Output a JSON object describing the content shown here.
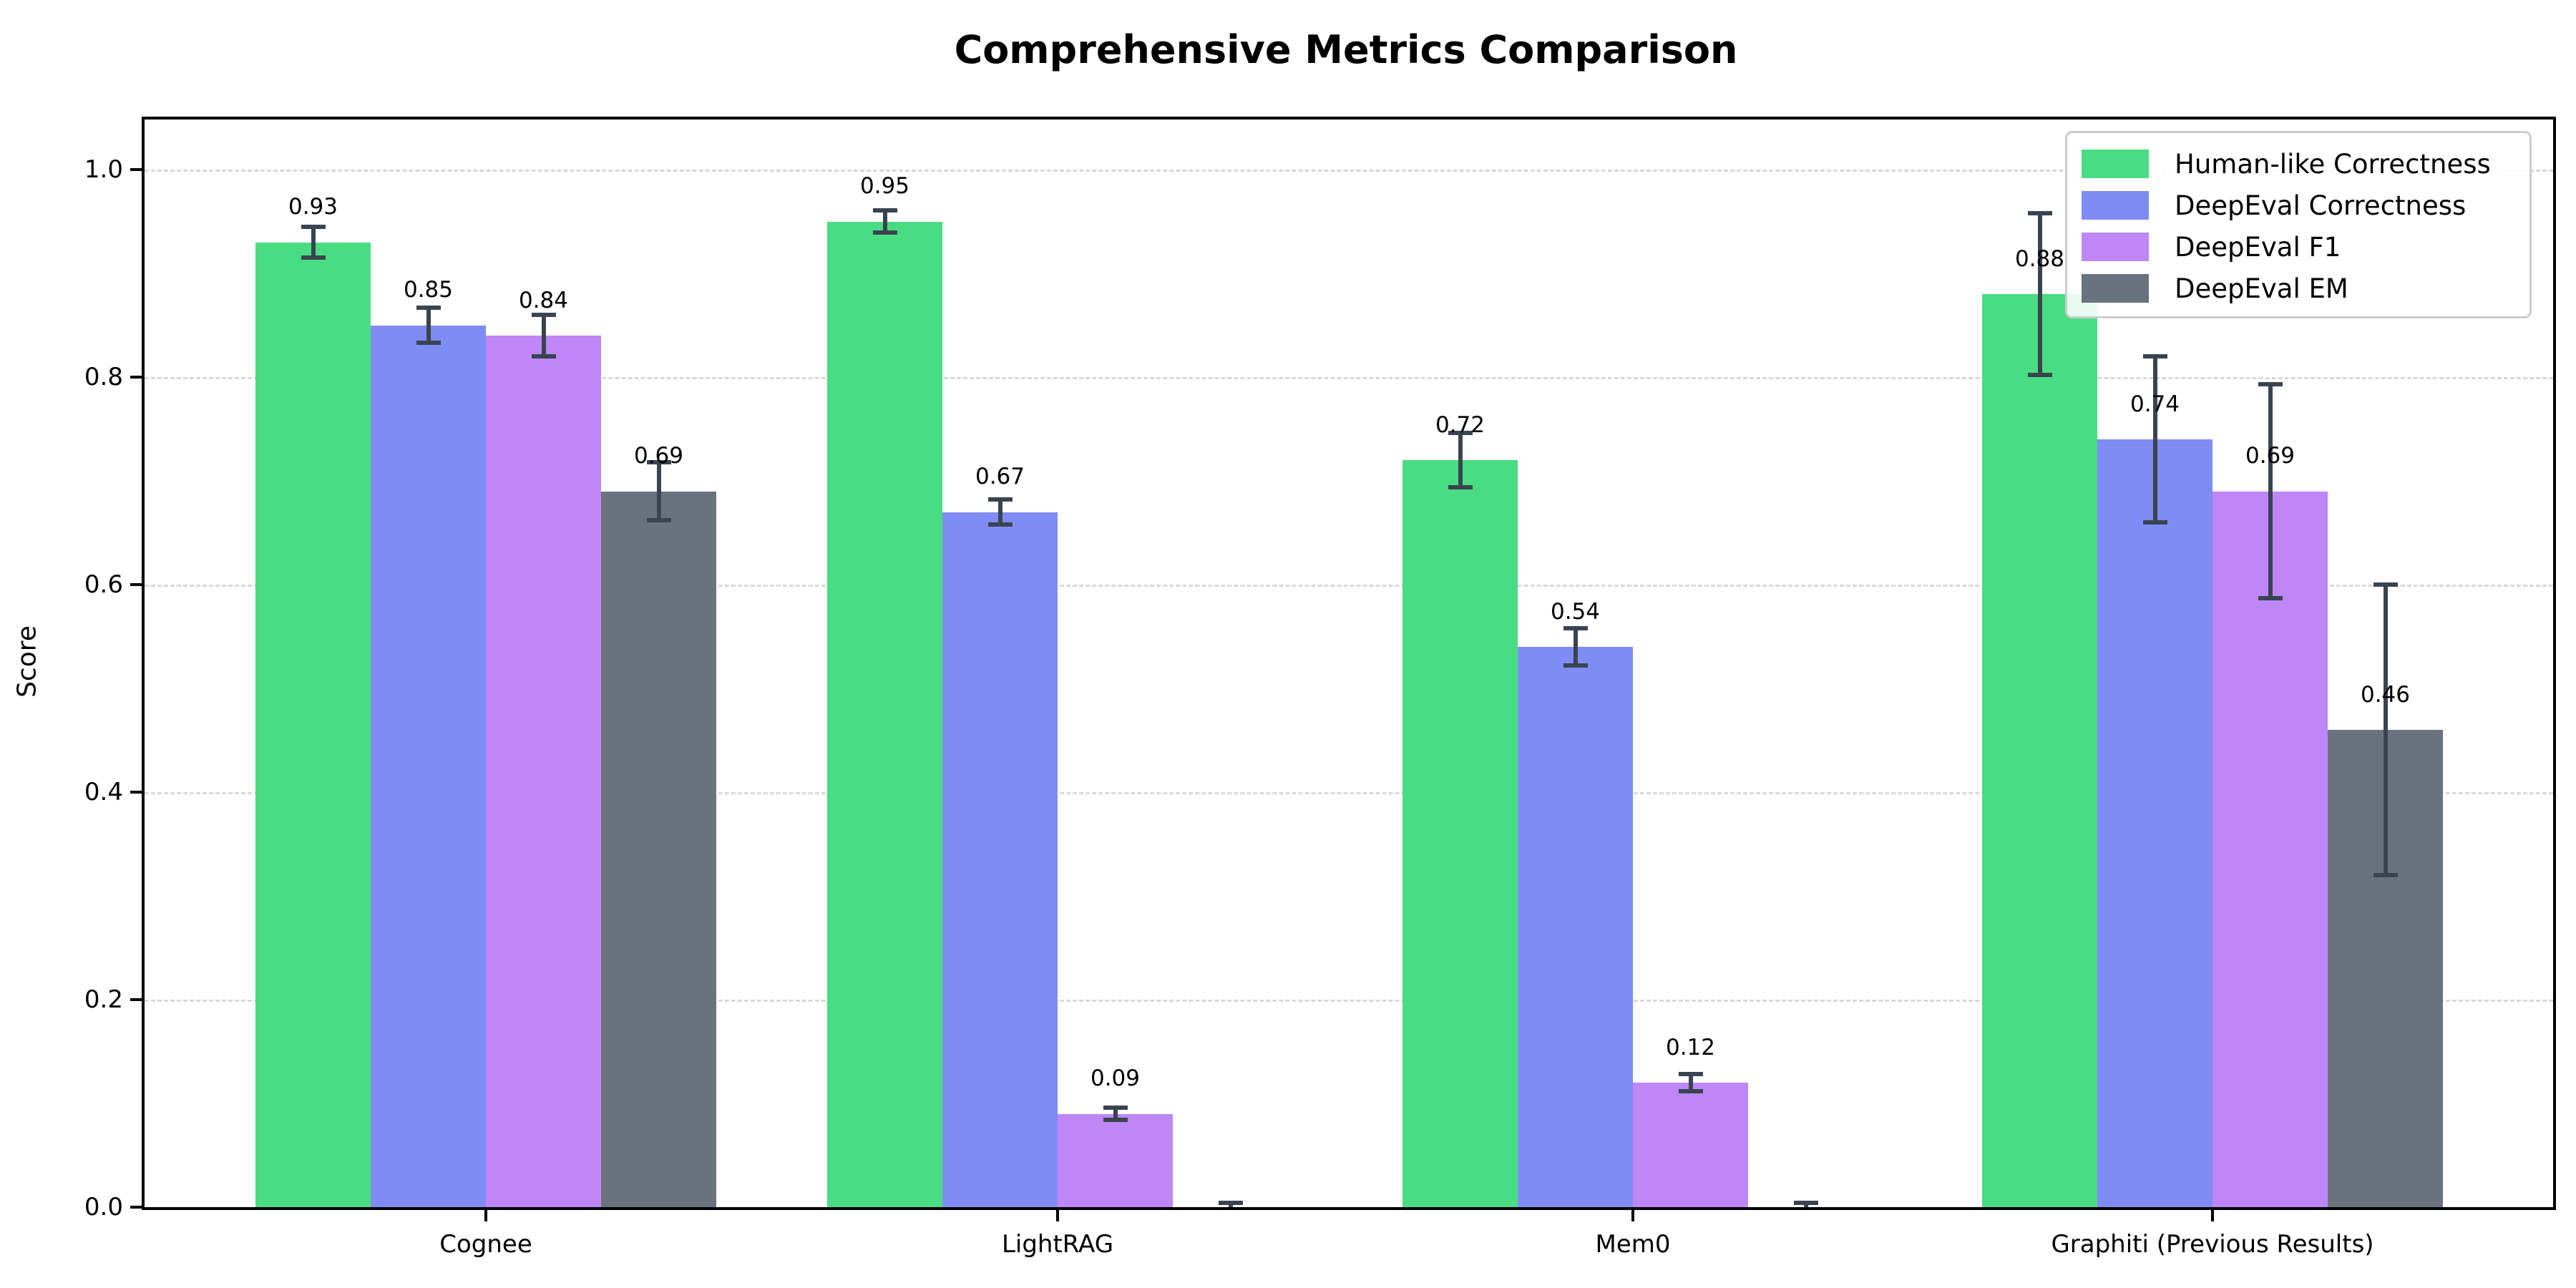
{
  "chart_data": {
    "type": "bar",
    "title": "Comprehensive Metrics Comparison",
    "ylabel": "Score",
    "xlabel": "",
    "categories": [
      "Cognee",
      "LightRAG",
      "Mem0",
      "Graphiti (Previous Results)"
    ],
    "series": [
      {
        "name": "Human-like Correctness",
        "color": "#4adc82",
        "values": [
          0.93,
          0.95,
          0.72,
          0.88
        ],
        "errors": [
          0.015,
          0.011,
          0.026,
          0.078
        ],
        "labels": [
          "0.93",
          "0.95",
          "0.72",
          "0.88"
        ]
      },
      {
        "name": "DeepEval Correctness",
        "color": "#7f8cf4",
        "values": [
          0.85,
          0.67,
          0.54,
          0.74
        ],
        "errors": [
          0.017,
          0.012,
          0.018,
          0.08
        ],
        "labels": [
          "0.85",
          "0.67",
          "0.54",
          "0.74"
        ]
      },
      {
        "name": "DeepEval F1",
        "color": "#be86f6",
        "values": [
          0.84,
          0.09,
          0.12,
          0.69
        ],
        "errors": [
          0.02,
          0.006,
          0.008,
          0.103
        ],
        "labels": [
          "0.84",
          "0.09",
          "0.12",
          "0.69"
        ]
      },
      {
        "name": "DeepEval EM",
        "color": "#6a7280",
        "values": [
          0.69,
          0.0,
          0.0,
          0.46
        ],
        "errors": [
          0.028,
          0.004,
          0.004,
          0.14
        ],
        "labels": [
          "0.69",
          null,
          null,
          "0.46"
        ]
      }
    ],
    "ylim": [
      0.0,
      1.048
    ],
    "yticks": [
      0.0,
      0.2,
      0.4,
      0.6,
      0.8,
      1.0
    ],
    "ytick_labels": [
      "0.0",
      "0.2",
      "0.4",
      "0.6",
      "0.8",
      "1.0"
    ],
    "grid": "horizontal-dashed",
    "legend_position": "top-right",
    "error_bar_color": "#3a4450",
    "gridline_color": "#d9d9d9",
    "axis_color": "#000000",
    "background_color": "#ffffff"
  }
}
